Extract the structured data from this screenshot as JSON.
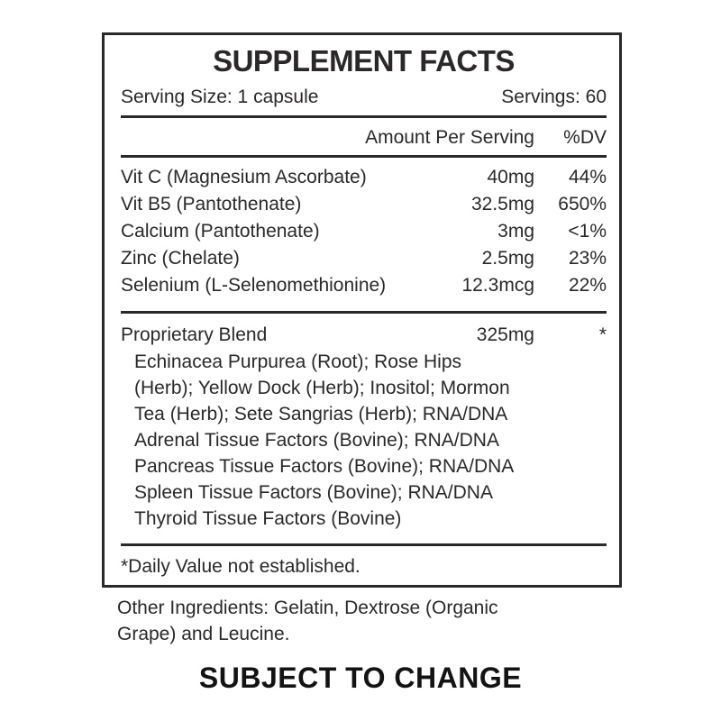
{
  "label": {
    "title": "SUPPLEMENT FACTS",
    "serving_size": "Serving Size: 1 capsule",
    "servings": "Servings: 60",
    "columns": {
      "amount": "Amount Per Serving",
      "dv": "%DV"
    },
    "nutrients": [
      {
        "name": "Vit C (Magnesium Ascorbate)",
        "amount": "40mg",
        "dv": "44%"
      },
      {
        "name": "Vit B5 (Pantothenate)",
        "amount": "32.5mg",
        "dv": "650%"
      },
      {
        "name": "Calcium (Pantothenate)",
        "amount": "3mg",
        "dv": "<1%"
      },
      {
        "name": "Zinc (Chelate)",
        "amount": "2.5mg",
        "dv": "23%"
      },
      {
        "name": "Selenium (L-Selenomethionine)",
        "amount": "12.3mcg",
        "dv": "22%"
      }
    ],
    "blend": {
      "name": "Proprietary Blend",
      "amount": "325mg",
      "dv": "*",
      "lines": [
        "Echinacea Purpurea (Root); Rose Hips",
        "(Herb); Yellow Dock (Herb); Inositol; Mormon",
        "Tea (Herb); Sete Sangrias (Herb); RNA/DNA",
        "Adrenal Tissue Factors (Bovine); RNA/DNA",
        "Pancreas Tissue Factors (Bovine); RNA/DNA",
        "Spleen Tissue Factors (Bovine); RNA/DNA",
        "Thyroid Tissue Factors (Bovine)"
      ]
    },
    "footnote": "*Daily Value not established.",
    "other_ingredients_lines": [
      "Other Ingredients: Gelatin, Dextrose (Organic",
      "Grape) and Leucine."
    ],
    "disclaimer": "SUBJECT TO CHANGE",
    "colors": {
      "background": "#ffffff",
      "text": "#2b2829",
      "border": "#2b2829",
      "disclaimer_text": "#131313"
    }
  }
}
